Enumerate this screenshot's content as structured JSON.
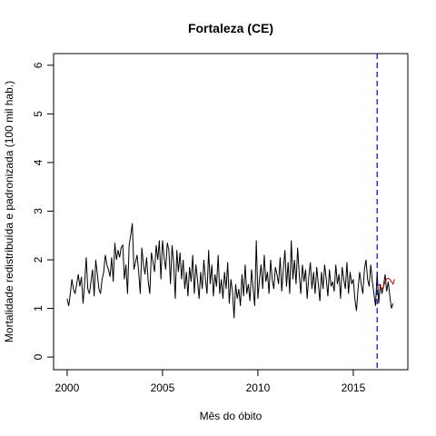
{
  "chart_data": {
    "type": "line",
    "title": "Fortaleza (CE)",
    "xlabel": "Mês do óbito",
    "ylabel": "Mortalidade redistribuída e padronizada (100 mil hab.)",
    "xlim": [
      1999.29,
      2017.86
    ],
    "ylim": [
      -0.26,
      6.24
    ],
    "xticks": [
      2000,
      2005,
      2010,
      2015
    ],
    "yticks": [
      0,
      1,
      2,
      3,
      4,
      5,
      6
    ],
    "vline": {
      "value": 2016.25,
      "color": "#0000cc"
    },
    "series": [
      {
        "color": "#000000",
        "x": [
          2000,
          2000.083,
          2000.167,
          2000.25,
          2000.333,
          2000.417,
          2000.5,
          2000.583,
          2000.667,
          2000.75,
          2000.833,
          2000.917,
          2001,
          2001.083,
          2001.167,
          2001.25,
          2001.333,
          2001.417,
          2001.5,
          2001.583,
          2001.667,
          2001.75,
          2001.833,
          2001.917,
          2002,
          2002.083,
          2002.167,
          2002.25,
          2002.333,
          2002.417,
          2002.5,
          2002.583,
          2002.667,
          2002.75,
          2002.833,
          2002.917,
          2003,
          2003.083,
          2003.167,
          2003.25,
          2003.333,
          2003.417,
          2003.5,
          2003.583,
          2003.667,
          2003.75,
          2003.833,
          2003.917,
          2004,
          2004.083,
          2004.167,
          2004.25,
          2004.333,
          2004.417,
          2004.5,
          2004.583,
          2004.667,
          2004.75,
          2004.833,
          2004.917,
          2005,
          2005.083,
          2005.167,
          2005.25,
          2005.333,
          2005.417,
          2005.5,
          2005.583,
          2005.667,
          2005.75,
          2005.833,
          2005.917,
          2006,
          2006.083,
          2006.167,
          2006.25,
          2006.333,
          2006.417,
          2006.5,
          2006.583,
          2006.667,
          2006.75,
          2006.833,
          2006.917,
          2007,
          2007.083,
          2007.167,
          2007.25,
          2007.333,
          2007.417,
          2007.5,
          2007.583,
          2007.667,
          2007.75,
          2007.833,
          2007.917,
          2008,
          2008.083,
          2008.167,
          2008.25,
          2008.333,
          2008.417,
          2008.5,
          2008.583,
          2008.667,
          2008.75,
          2008.833,
          2008.917,
          2009,
          2009.083,
          2009.167,
          2009.25,
          2009.333,
          2009.417,
          2009.5,
          2009.583,
          2009.667,
          2009.75,
          2009.833,
          2009.917,
          2010,
          2010.083,
          2010.167,
          2010.25,
          2010.333,
          2010.417,
          2010.5,
          2010.583,
          2010.667,
          2010.75,
          2010.833,
          2010.917,
          2011,
          2011.083,
          2011.167,
          2011.25,
          2011.333,
          2011.417,
          2011.5,
          2011.583,
          2011.667,
          2011.75,
          2011.833,
          2011.917,
          2012,
          2012.083,
          2012.167,
          2012.25,
          2012.333,
          2012.417,
          2012.5,
          2012.583,
          2012.667,
          2012.75,
          2012.833,
          2012.917,
          2013,
          2013.083,
          2013.167,
          2013.25,
          2013.333,
          2013.417,
          2013.5,
          2013.583,
          2013.667,
          2013.75,
          2013.833,
          2013.917,
          2014,
          2014.083,
          2014.167,
          2014.25,
          2014.333,
          2014.417,
          2014.5,
          2014.583,
          2014.667,
          2014.75,
          2014.833,
          2014.917,
          2015,
          2015.083,
          2015.167,
          2015.25,
          2015.333,
          2015.417,
          2015.5,
          2015.583,
          2015.667,
          2015.75,
          2015.833,
          2015.917,
          2016,
          2016.083,
          2016.167,
          2016.25,
          2016.333,
          2016.417,
          2016.5,
          2016.583,
          2016.667,
          2016.75,
          2016.833,
          2016.917,
          2017,
          2017.083
        ],
        "values": [
          1.2,
          1.05,
          1.3,
          1.6,
          1.4,
          1.3,
          1.5,
          1.7,
          1.45,
          1.65,
          1.1,
          1.5,
          2.05,
          1.4,
          1.3,
          1.55,
          1.8,
          1.25,
          2.0,
          1.7,
          1.4,
          1.3,
          1.6,
          1.75,
          2.1,
          1.9,
          1.8,
          1.65,
          2.05,
          1.55,
          2.35,
          2.0,
          2.2,
          2.05,
          2.25,
          2.3,
          1.6,
          1.9,
          1.3,
          2.3,
          2.5,
          2.75,
          1.8,
          1.95,
          2.1,
          1.75,
          1.3,
          2.25,
          1.9,
          1.7,
          2.05,
          1.55,
          1.3,
          2.15,
          1.95,
          1.75,
          2.3,
          2.0,
          2.4,
          1.6,
          2.4,
          2.05,
          1.8,
          2.35,
          2.2,
          1.5,
          2.3,
          1.95,
          1.2,
          2.2,
          1.75,
          2.15,
          1.6,
          2.0,
          1.4,
          1.75,
          1.25,
          1.85,
          1.55,
          2.1,
          1.3,
          1.9,
          1.6,
          1.2,
          1.75,
          1.4,
          2.0,
          1.6,
          1.3,
          2.2,
          1.5,
          1.9,
          1.25,
          1.7,
          1.45,
          2.1,
          1.3,
          1.6,
          1.2,
          1.75,
          1.4,
          1.95,
          1.1,
          1.6,
          1.35,
          0.8,
          1.5,
          1.2,
          1.4,
          1.05,
          1.7,
          1.25,
          1.9,
          1.3,
          1.5,
          1.15,
          1.8,
          1.4,
          1.05,
          2.4,
          1.2,
          1.6,
          1.9,
          1.4,
          2.1,
          1.55,
          1.75,
          1.3,
          2.0,
          1.6,
          1.4,
          1.85,
          1.7,
          1.5,
          2.05,
          1.35,
          1.8,
          2.2,
          1.45,
          1.95,
          1.3,
          2.4,
          1.6,
          2.0,
          1.5,
          2.25,
          1.7,
          1.3,
          1.9,
          1.55,
          1.8,
          1.2,
          1.65,
          1.95,
          1.4,
          1.75,
          1.3,
          1.85,
          1.5,
          1.15,
          1.75,
          1.4,
          1.9,
          1.6,
          1.25,
          1.8,
          1.45,
          1.55,
          1.35,
          1.9,
          1.5,
          1.7,
          1.2,
          1.85,
          1.6,
          1.4,
          1.95,
          1.3,
          1.75,
          1.5,
          1.6,
          1.2,
          0.95,
          1.4,
          1.75,
          1.5,
          1.3,
          1.8,
          2.0,
          1.6,
          1.45,
          1.9,
          1.55,
          1.3,
          1.05,
          1.75,
          1.1,
          1.5,
          1.3,
          1.45,
          1.7,
          1.35,
          1.55,
          1.25,
          1.0,
          1.1
        ]
      },
      {
        "color": "#cc0000",
        "x": [
          2016.333,
          2016.417,
          2016.5,
          2016.583,
          2016.667,
          2016.75,
          2016.833,
          2016.917,
          2017,
          2017.083,
          2017.167
        ],
        "values": [
          1.5,
          1.45,
          1.4,
          1.45,
          1.55,
          1.6,
          1.62,
          1.6,
          1.55,
          1.5,
          1.6
        ]
      }
    ]
  }
}
